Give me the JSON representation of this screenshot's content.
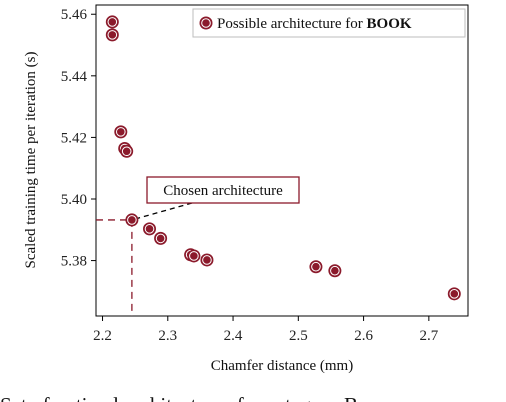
{
  "chart_data": {
    "type": "scatter",
    "xlabel": "Chamfer distance (mm)",
    "ylabel": "Scaled training time per iteration (s)",
    "xlim": [
      2.19,
      2.76
    ],
    "ylim": [
      5.362,
      5.463
    ],
    "x_ticks": [
      2.2,
      2.3,
      2.4,
      2.5,
      2.6,
      2.7
    ],
    "y_ticks": [
      5.38,
      5.4,
      5.42,
      5.44,
      5.46
    ],
    "x_tick_labels": [
      "2.2",
      "2.3",
      "2.4",
      "2.5",
      "2.6",
      "2.7"
    ],
    "y_tick_labels": [
      "5.38",
      "5.40",
      "5.42",
      "5.44",
      "5.46"
    ],
    "grid": false,
    "legend_position": "top-right",
    "series": [
      {
        "name": "Possible architecture for BOOK",
        "name_plain": "Possible architecture for ",
        "name_bold": "BOOK",
        "color": "#8b1a2b",
        "points": [
          {
            "x": 2.215,
            "y": 5.4575
          },
          {
            "x": 2.215,
            "y": 5.4533
          },
          {
            "x": 2.228,
            "y": 5.4218
          },
          {
            "x": 2.234,
            "y": 5.4164
          },
          {
            "x": 2.237,
            "y": 5.4155
          },
          {
            "x": 2.245,
            "y": 5.3932
          },
          {
            "x": 2.272,
            "y": 5.3903
          },
          {
            "x": 2.289,
            "y": 5.3872
          },
          {
            "x": 2.335,
            "y": 5.3819
          },
          {
            "x": 2.34,
            "y": 5.3815
          },
          {
            "x": 2.36,
            "y": 5.3802
          },
          {
            "x": 2.527,
            "y": 5.378
          },
          {
            "x": 2.556,
            "y": 5.3767
          },
          {
            "x": 2.739,
            "y": 5.3692
          }
        ]
      }
    ],
    "annotation": {
      "text": "Chosen architecture",
      "x": 2.245,
      "y": 5.3932
    },
    "caption": "Set of optimal architectures for category B"
  }
}
